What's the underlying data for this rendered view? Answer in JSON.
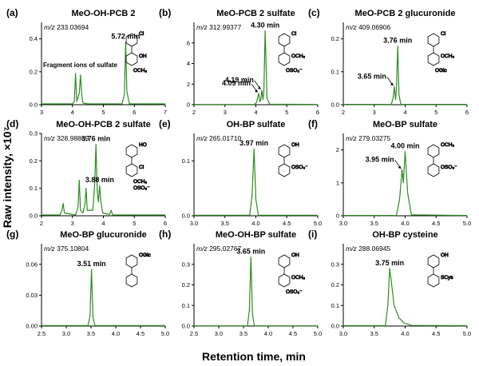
{
  "figure": {
    "ylabel": "Raw intensity, ×10⁷",
    "xlabel": "Retention time, min"
  },
  "chart_data": [
    {
      "id": "a",
      "panel_label": "(a)",
      "type": "line",
      "title": "MeO-OH-PCB 2",
      "mz_prefix": "m/z",
      "mz_value": "233.03694",
      "xlim": [
        3,
        7
      ],
      "ylim": [
        0,
        0.5
      ],
      "xticks": [
        "3",
        "4",
        "5",
        "6",
        "7"
      ],
      "yticks": [
        "0.0",
        "0.2",
        "0.4"
      ],
      "ytick_values": [
        0,
        0.2,
        0.4
      ],
      "x": [
        3.0,
        4.0,
        4.06,
        4.1,
        4.14,
        4.22,
        4.26,
        4.3,
        4.34,
        4.5,
        5.6,
        5.68,
        5.72,
        5.76,
        5.84,
        6.0,
        7.0
      ],
      "y": [
        0.005,
        0.005,
        0.02,
        0.19,
        0.02,
        0.07,
        0.18,
        0.06,
        0.01,
        0.005,
        0.005,
        0.06,
        0.38,
        0.08,
        0.005,
        0.005,
        0.005
      ],
      "annotations": [
        {
          "text": "5.72 min",
          "x": 5.72,
          "y": 0.38,
          "arrow": false
        },
        {
          "text": "Fragment ions of sulfate",
          "x": 4.2,
          "y": 0.2,
          "arrow": false,
          "kind": "note"
        }
      ],
      "structure": {
        "labels": [
          "Cl",
          "OH",
          "OCH₃"
        ]
      }
    },
    {
      "id": "d",
      "panel_label": "(d)",
      "type": "line",
      "title": "MeO-OH-PCB 2 sulfate",
      "mz_prefix": "m/z",
      "mz_value": "328.98869",
      "xlim": [
        2,
        6
      ],
      "ylim": [
        0,
        0.3
      ],
      "xticks": [
        "2",
        "3",
        "4",
        "5",
        "6"
      ],
      "yticks": [
        "0.0",
        "0.1",
        "0.2",
        "0.3"
      ],
      "ytick_values": [
        0,
        0.1,
        0.2,
        0.3
      ],
      "x": [
        2.0,
        2.6,
        2.66,
        2.7,
        2.74,
        3.1,
        3.18,
        3.22,
        3.26,
        3.34,
        3.4,
        3.44,
        3.48,
        3.66,
        3.72,
        3.76,
        3.8,
        3.84,
        3.88,
        3.92,
        3.98,
        4.2,
        4.25,
        4.3,
        4.6,
        6.0
      ],
      "y": [
        0.003,
        0.003,
        0.02,
        0.045,
        0.01,
        0.003,
        0.03,
        0.13,
        0.02,
        0.01,
        0.04,
        0.1,
        0.02,
        0.02,
        0.12,
        0.26,
        0.09,
        0.05,
        0.11,
        0.05,
        0.01,
        0.005,
        0.02,
        0.003,
        0.003,
        0.003
      ],
      "annotations": [
        {
          "text": "3.76 min",
          "x": 3.76,
          "y": 0.26,
          "arrow": false
        },
        {
          "text": "3.88 min",
          "x": 3.88,
          "y": 0.11,
          "arrow": false
        }
      ],
      "structure": {
        "labels": [
          "HO",
          "Cl",
          "OCH₃",
          "OSO₃⁻"
        ]
      }
    },
    {
      "id": "g",
      "panel_label": "(g)",
      "type": "line",
      "title": "MeO-BP glucuronide",
      "mz_prefix": "m/z",
      "mz_value": "375.10804",
      "xlim": [
        2.5,
        5.0
      ],
      "ylim": [
        0,
        0.08
      ],
      "xticks": [
        "2.5",
        "3.0",
        "3.5",
        "4.0",
        "4.5",
        "5.0"
      ],
      "yticks": [
        "0.00",
        "0.03",
        "0.06"
      ],
      "ytick_values": [
        0,
        0.03,
        0.06
      ],
      "x": [
        2.5,
        3.44,
        3.48,
        3.51,
        3.54,
        3.58,
        5.0
      ],
      "y": [
        0.0005,
        0.0005,
        0.01,
        0.055,
        0.008,
        0.0005,
        0.0005
      ],
      "annotations": [
        {
          "text": "3.51 min",
          "x": 3.51,
          "y": 0.055,
          "arrow": false
        }
      ],
      "structure": {
        "labels": [
          "OGlc"
        ]
      }
    },
    {
      "id": "b",
      "panel_label": "(b)",
      "type": "line",
      "title": "MeO-PCB 2 sulfate",
      "mz_prefix": "m/z",
      "mz_value": "312.99377",
      "xlim": [
        2,
        6
      ],
      "ylim": [
        0,
        8
      ],
      "xticks": [
        "2",
        "3",
        "4",
        "5",
        "6"
      ],
      "yticks": [
        "0",
        "2",
        "4",
        "6"
      ],
      "ytick_values": [
        0,
        2,
        4,
        6
      ],
      "x": [
        2.0,
        3.95,
        4.02,
        4.09,
        4.13,
        4.16,
        4.19,
        4.23,
        4.26,
        4.3,
        4.36,
        4.45,
        6.0
      ],
      "y": [
        0.02,
        0.02,
        0.2,
        1.1,
        0.3,
        0.5,
        1.4,
        0.5,
        1.5,
        7.2,
        0.6,
        0.05,
        0.02
      ],
      "annotations": [
        {
          "text": "4.30 min",
          "x": 4.3,
          "y": 7.2,
          "arrow": false
        },
        {
          "text": "4.19 min",
          "x": 4.19,
          "y": 1.4,
          "arrow": true
        },
        {
          "text": "4.09 min",
          "x": 4.09,
          "y": 1.1,
          "arrow": true
        }
      ],
      "structure": {
        "labels": [
          "Cl",
          "OCH₃",
          "OSO₃⁻"
        ]
      }
    },
    {
      "id": "e",
      "panel_label": "(e)",
      "type": "line",
      "title": "OH-BP sulfate",
      "mz_prefix": "m/z",
      "mz_value": "265.01710",
      "xlim": [
        3.0,
        5.0
      ],
      "ylim": [
        0,
        0.15
      ],
      "xticks": [
        "3.0",
        "3.5",
        "4.0",
        "4.5",
        "5.0"
      ],
      "yticks": [
        "0.0",
        "0.1"
      ],
      "ytick_values": [
        0,
        0.1
      ],
      "x": [
        3.0,
        3.9,
        3.94,
        3.97,
        4.0,
        4.04,
        5.0
      ],
      "y": [
        0.001,
        0.001,
        0.04,
        0.122,
        0.03,
        0.001,
        0.001
      ],
      "annotations": [
        {
          "text": "3.97 min",
          "x": 3.97,
          "y": 0.122,
          "arrow": false
        }
      ],
      "structure": {
        "labels": [
          "OH",
          "OSO₃⁻"
        ]
      }
    },
    {
      "id": "h",
      "panel_label": "(h)",
      "type": "line",
      "title": "MeO-OH-BP sulfate",
      "mz_prefix": "m/z",
      "mz_value": "295.02767",
      "xlim": [
        2.5,
        5.0
      ],
      "ylim": [
        0,
        0.4
      ],
      "xticks": [
        "2.5",
        "3.0",
        "3.5",
        "4.0",
        "4.5",
        "5.0"
      ],
      "yticks": [
        "0.0",
        "0.1",
        "0.2",
        "0.3"
      ],
      "ytick_values": [
        0,
        0.1,
        0.2,
        0.3
      ],
      "x": [
        2.5,
        3.58,
        3.62,
        3.65,
        3.68,
        3.72,
        5.0
      ],
      "y": [
        0.001,
        0.001,
        0.08,
        0.335,
        0.06,
        0.001,
        0.001
      ],
      "annotations": [
        {
          "text": "3.65 min",
          "x": 3.65,
          "y": 0.335,
          "arrow": false
        }
      ],
      "structure": {
        "labels": [
          "OH",
          "OCH₃",
          "OSO₃⁻"
        ]
      }
    },
    {
      "id": "c",
      "panel_label": "(c)",
      "type": "line",
      "title": "MeO-PCB 2 glucuronide",
      "mz_prefix": "m/z",
      "mz_value": "409.06906",
      "xlim": [
        2,
        6
      ],
      "ylim": [
        0,
        0.25
      ],
      "xticks": [
        "2",
        "3",
        "4",
        "5",
        "6"
      ],
      "yticks": [
        "0.0",
        "0.1",
        "0.2"
      ],
      "ytick_values": [
        0,
        0.1,
        0.2
      ],
      "x": [
        2.0,
        3.55,
        3.61,
        3.65,
        3.69,
        3.72,
        3.76,
        3.8,
        3.86,
        6.0
      ],
      "y": [
        0.001,
        0.001,
        0.02,
        0.055,
        0.015,
        0.05,
        0.178,
        0.03,
        0.001,
        0.001
      ],
      "annotations": [
        {
          "text": "3.76 min",
          "x": 3.76,
          "y": 0.178,
          "arrow": false
        },
        {
          "text": "3.65 min",
          "x": 3.65,
          "y": 0.055,
          "arrow": true
        }
      ],
      "structure": {
        "labels": [
          "Cl",
          "OCH₃",
          "OGlc"
        ]
      }
    },
    {
      "id": "f",
      "panel_label": "(f)",
      "type": "line",
      "title": "MeO-BP sulfate",
      "mz_prefix": "m/z",
      "mz_value": "279.03275",
      "xlim": [
        3.0,
        5.0
      ],
      "ylim": [
        0,
        2.5
      ],
      "xticks": [
        "3.0",
        "3.5",
        "4.0",
        "4.5",
        "5.0"
      ],
      "yticks": [
        "0",
        "1",
        "2"
      ],
      "ytick_values": [
        0,
        1,
        2
      ],
      "x": [
        3.0,
        3.86,
        3.91,
        3.95,
        3.97,
        4.0,
        4.04,
        4.1,
        5.0
      ],
      "y": [
        0.01,
        0.01,
        0.5,
        1.4,
        1.0,
        1.95,
        0.7,
        0.03,
        0.01
      ],
      "annotations": [
        {
          "text": "4.00 min",
          "x": 4.0,
          "y": 1.95,
          "arrow": false
        },
        {
          "text": "3.95 min",
          "x": 3.95,
          "y": 1.4,
          "arrow": true
        }
      ],
      "structure": {
        "labels": [
          "OCH₃",
          "OSO₃⁻"
        ]
      }
    },
    {
      "id": "i",
      "panel_label": "(i)",
      "type": "line",
      "title": "OH-BP cysteine",
      "mz_prefix": "m/z",
      "mz_value": "288.06945",
      "xlim": [
        3.0,
        5.0
      ],
      "ylim": [
        0,
        0.4
      ],
      "xticks": [
        "3.0",
        "3.5",
        "4.0",
        "4.5",
        "5.0"
      ],
      "yticks": [
        "0.0",
        "0.1",
        "0.2",
        "0.3"
      ],
      "ytick_values": [
        0,
        0.1,
        0.2,
        0.3
      ],
      "x": [
        3.0,
        3.68,
        3.72,
        3.75,
        3.78,
        3.82,
        3.9,
        3.98,
        4.1,
        5.0
      ],
      "y": [
        0.002,
        0.002,
        0.1,
        0.28,
        0.21,
        0.1,
        0.04,
        0.015,
        0.003,
        0.002
      ],
      "annotations": [
        {
          "text": "3.75 min",
          "x": 3.75,
          "y": 0.28,
          "arrow": false
        }
      ],
      "structure": {
        "labels": [
          "OH",
          "SCys"
        ]
      }
    }
  ]
}
